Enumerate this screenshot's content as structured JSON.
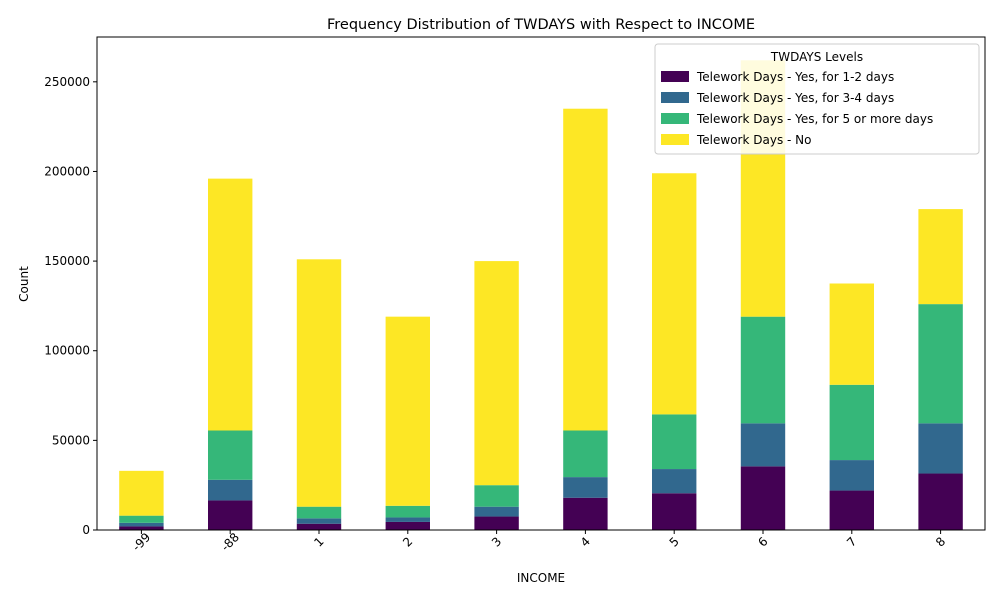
{
  "chart_data": {
    "type": "bar",
    "stacked": true,
    "title": "Frequency Distribution of TWDAYS with Respect to INCOME",
    "xlabel": "INCOME",
    "ylabel": "Count",
    "ylim": [
      0,
      275000
    ],
    "yticks": [
      0,
      50000,
      100000,
      150000,
      200000,
      250000
    ],
    "categories": [
      "-99",
      "-88",
      "1",
      "2",
      "3",
      "4",
      "5",
      "6",
      "7",
      "8"
    ],
    "grid": false,
    "legend": {
      "title": "TWDAYS Levels",
      "placement": "top-right"
    },
    "series": [
      {
        "name": "Telework Days - Yes, for 1-2 days",
        "color": "#440154",
        "values": [
          2000,
          16500,
          3500,
          4500,
          7500,
          18000,
          20500,
          35500,
          22000,
          31500
        ]
      },
      {
        "name": "Telework Days - Yes, for 3-4 days",
        "color": "#31688e",
        "values": [
          2000,
          11500,
          3000,
          2500,
          5500,
          11500,
          13500,
          24000,
          17000,
          28000
        ]
      },
      {
        "name": "Telework Days - Yes, for 5 or more days",
        "color": "#35b779",
        "values": [
          4000,
          27500,
          6500,
          6500,
          12000,
          26000,
          30500,
          59500,
          42000,
          66500
        ]
      },
      {
        "name": "Telework Days - No",
        "color": "#fde725",
        "values": [
          25000,
          140500,
          138000,
          105500,
          125000,
          179500,
          134500,
          143000,
          56500,
          53000
        ]
      }
    ]
  }
}
